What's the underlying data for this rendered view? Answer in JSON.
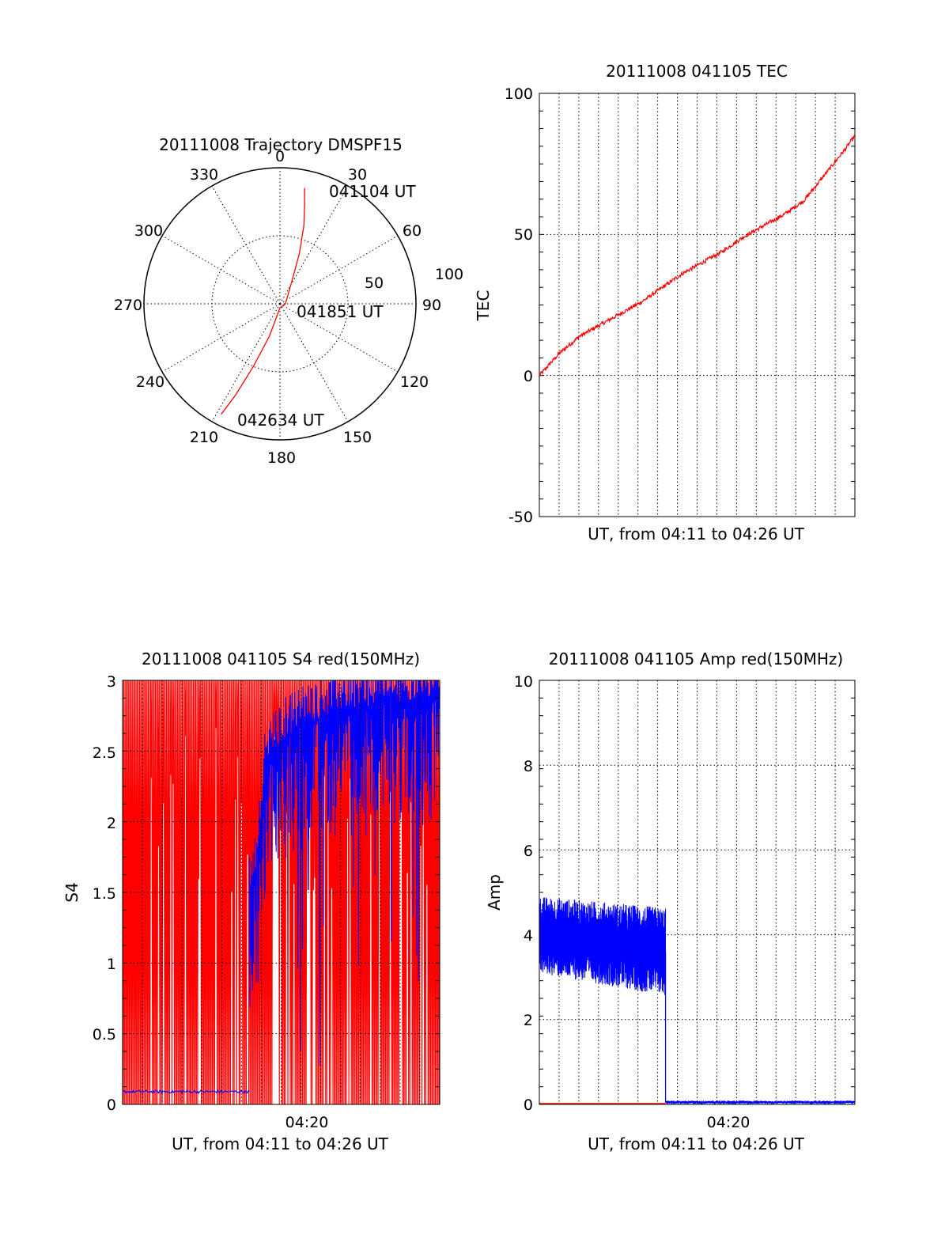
{
  "colors": {
    "red": "#ff0000",
    "blue": "#0000ff",
    "axis": "#000000",
    "grid": "#000000"
  },
  "chart_data": [
    {
      "type": "polar",
      "title": "20111008 Trajectory DMSPF15",
      "angle_labels": [
        "0",
        "30",
        "60",
        "90",
        "120",
        "150",
        "180",
        "210",
        "240",
        "270",
        "300",
        "330"
      ],
      "radial_labels": [
        "50",
        "100"
      ],
      "radial_range": [
        0,
        100
      ],
      "annotations": [
        "041104 UT",
        "041851 UT",
        "042634 UT"
      ],
      "trajectory": [
        {
          "az": 12,
          "r": 87
        },
        {
          "az": 14,
          "r": 75
        },
        {
          "az": 17,
          "r": 60
        },
        {
          "az": 21,
          "r": 40
        },
        {
          "az": 26,
          "r": 22
        },
        {
          "az": 90,
          "r": 4
        },
        {
          "az": 180,
          "r": 3
        },
        {
          "az": 198,
          "r": 25
        },
        {
          "az": 203,
          "r": 50
        },
        {
          "az": 206,
          "r": 75
        },
        {
          "az": 208,
          "r": 92
        }
      ]
    },
    {
      "type": "line",
      "title": "20111008 041105 TEC",
      "xlabel": "UT, from 04:11 to 04:26 UT",
      "ylabel": "TEC",
      "ylim": [
        -50,
        100
      ],
      "yticks": [
        "-50",
        "0",
        "50",
        "100"
      ],
      "xlim_minutes": [
        0,
        15.5
      ],
      "series": [
        {
          "name": "TEC",
          "color": "red",
          "x": [
            0,
            1,
            2,
            3,
            4,
            5,
            6,
            7,
            8,
            9,
            10,
            11,
            12,
            13,
            14,
            15,
            15.5
          ],
          "y": [
            0,
            8,
            14,
            18,
            22,
            26,
            31,
            36,
            40,
            44,
            49,
            53,
            57,
            62,
            71,
            80,
            85
          ]
        }
      ]
    },
    {
      "type": "line",
      "title": "20111008 041105 S4 red(150MHz)",
      "xlabel": "UT, from 04:11 to 04:26 UT",
      "ylabel": "S4",
      "ylim": [
        0,
        3
      ],
      "yticks": [
        "0",
        "0.5",
        "1",
        "1.5",
        "2",
        "2.5",
        "3"
      ],
      "xlim_minutes": [
        0,
        15.5
      ],
      "xticks": [
        {
          "minute": 9,
          "label": "04:20"
        }
      ],
      "series": [
        {
          "name": "S4 red (150MHz)",
          "color": "red",
          "description_values": "rapid oscillation between 0 and 3 across full interval",
          "x_range": [
            0,
            15.5
          ],
          "y_range": [
            0,
            3
          ]
        },
        {
          "name": "S4 blue",
          "color": "blue",
          "segments": [
            {
              "x": [
                0,
                6.2
              ],
              "y": [
                0.09,
                0.09
              ]
            },
            {
              "x": [
                6.2,
                6.5,
                7,
                8,
                9,
                10,
                11,
                12,
                13,
                14,
                15.5
              ],
              "y": [
                1.5,
                1.65,
                2.4,
                2.6,
                2.7,
                2.75,
                2.8,
                2.8,
                2.85,
                2.85,
                2.9
              ]
            }
          ]
        }
      ]
    },
    {
      "type": "line",
      "title": "20111008 041105 Amp red(150MHz)",
      "xlabel": "UT, from 04:11 to 04:26 UT",
      "ylabel": "Amp",
      "ylim": [
        0,
        10
      ],
      "yticks": [
        "0",
        "2",
        "4",
        "6",
        "8",
        "10"
      ],
      "xlim_minutes": [
        0,
        15.5
      ],
      "xticks": [
        {
          "minute": 9,
          "label": "04:20"
        }
      ],
      "series": [
        {
          "name": "Amp blue",
          "color": "blue",
          "segments": [
            {
              "x": [
                0,
                6.2
              ],
              "y_center": [
                4.0,
                3.6
              ],
              "y_spread": [
                0.7,
                0.8
              ]
            },
            {
              "x": [
                6.2,
                15.5
              ],
              "y_center": [
                0.05,
                0.05
              ],
              "y_spread": [
                0.03,
                0.03
              ]
            }
          ]
        },
        {
          "name": "Amp red",
          "color": "red",
          "x": [
            0,
            6.2
          ],
          "y": [
            0,
            0
          ]
        }
      ]
    }
  ]
}
